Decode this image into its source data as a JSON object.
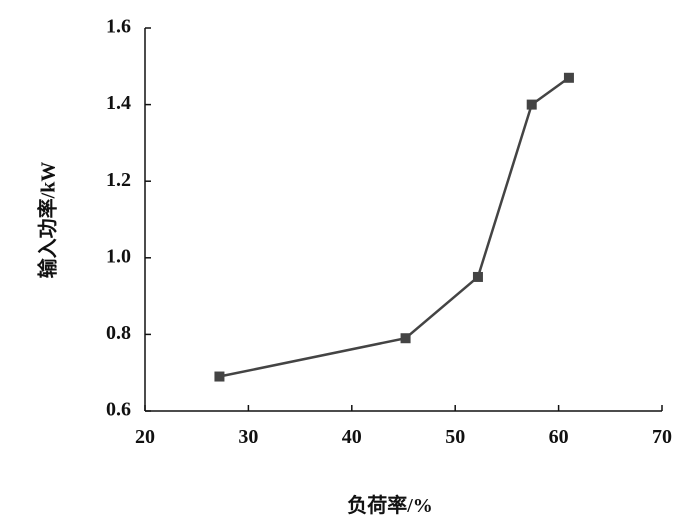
{
  "chart_data": {
    "type": "line",
    "x_label": "负荷率/%",
    "y_label": "输入功率/kW",
    "x": [
      27.2,
      45.2,
      52.2,
      57.4,
      61.0
    ],
    "series": [
      {
        "color": "#444444",
        "values": [
          0.69,
          0.79,
          0.95,
          1.4,
          1.47
        ]
      }
    ],
    "xlim": [
      20,
      70
    ],
    "xticks": [
      20,
      30,
      40,
      50,
      60,
      70
    ],
    "ylim": [
      0.6,
      1.6
    ],
    "yticks": [
      0.6,
      0.8,
      {
        "value": 1,
        "label": "1.0"
      },
      1.2,
      1.4,
      1.6
    ]
  }
}
